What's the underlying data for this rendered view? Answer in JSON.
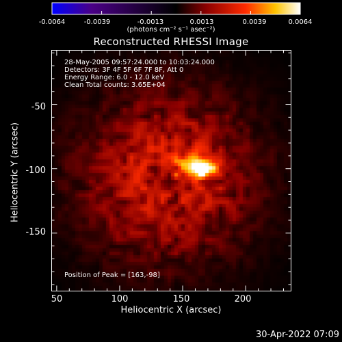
{
  "colorbar": {
    "tick_labels": [
      "-0.0064",
      "-0.0039",
      "-0.0013",
      "0.0013",
      "0.0039",
      "0.0064"
    ],
    "unit_label": "(photons cm⁻² s⁻¹ asec⁻²)",
    "colors": [
      "#0000ff",
      "#4a0086",
      "#000000",
      "#8a0000",
      "#ff2b00",
      "#ffc400",
      "#ffffff"
    ]
  },
  "chart_data": {
    "type": "heatmap",
    "title": "Reconstructed RHESSI Image",
    "xlabel": "Heliocentric X (arcsec)",
    "ylabel": "Heliocentric Y (arcsec)",
    "xlim": [
      46,
      236
    ],
    "ylim": [
      -195,
      -8
    ],
    "x_ticks": [
      50,
      100,
      150,
      200
    ],
    "y_ticks": [
      -50,
      -100,
      -150
    ],
    "value_range": [
      -0.0064,
      0.0064
    ],
    "peak_position": [
      163,
      -98
    ],
    "info_lines": [
      "28-May-2005 09:57:24.000 to 10:03:24.000",
      "Detectors: 3F 4F 5F 6F 7F 8F, Att 0",
      "Energy Range: 6.0 - 12.0 keV",
      "Clean     Total counts: 3.65E+04"
    ],
    "peak_text": "Position of Peak = [163,-98]"
  },
  "timestamp": "30-Apr-2022 07:09"
}
